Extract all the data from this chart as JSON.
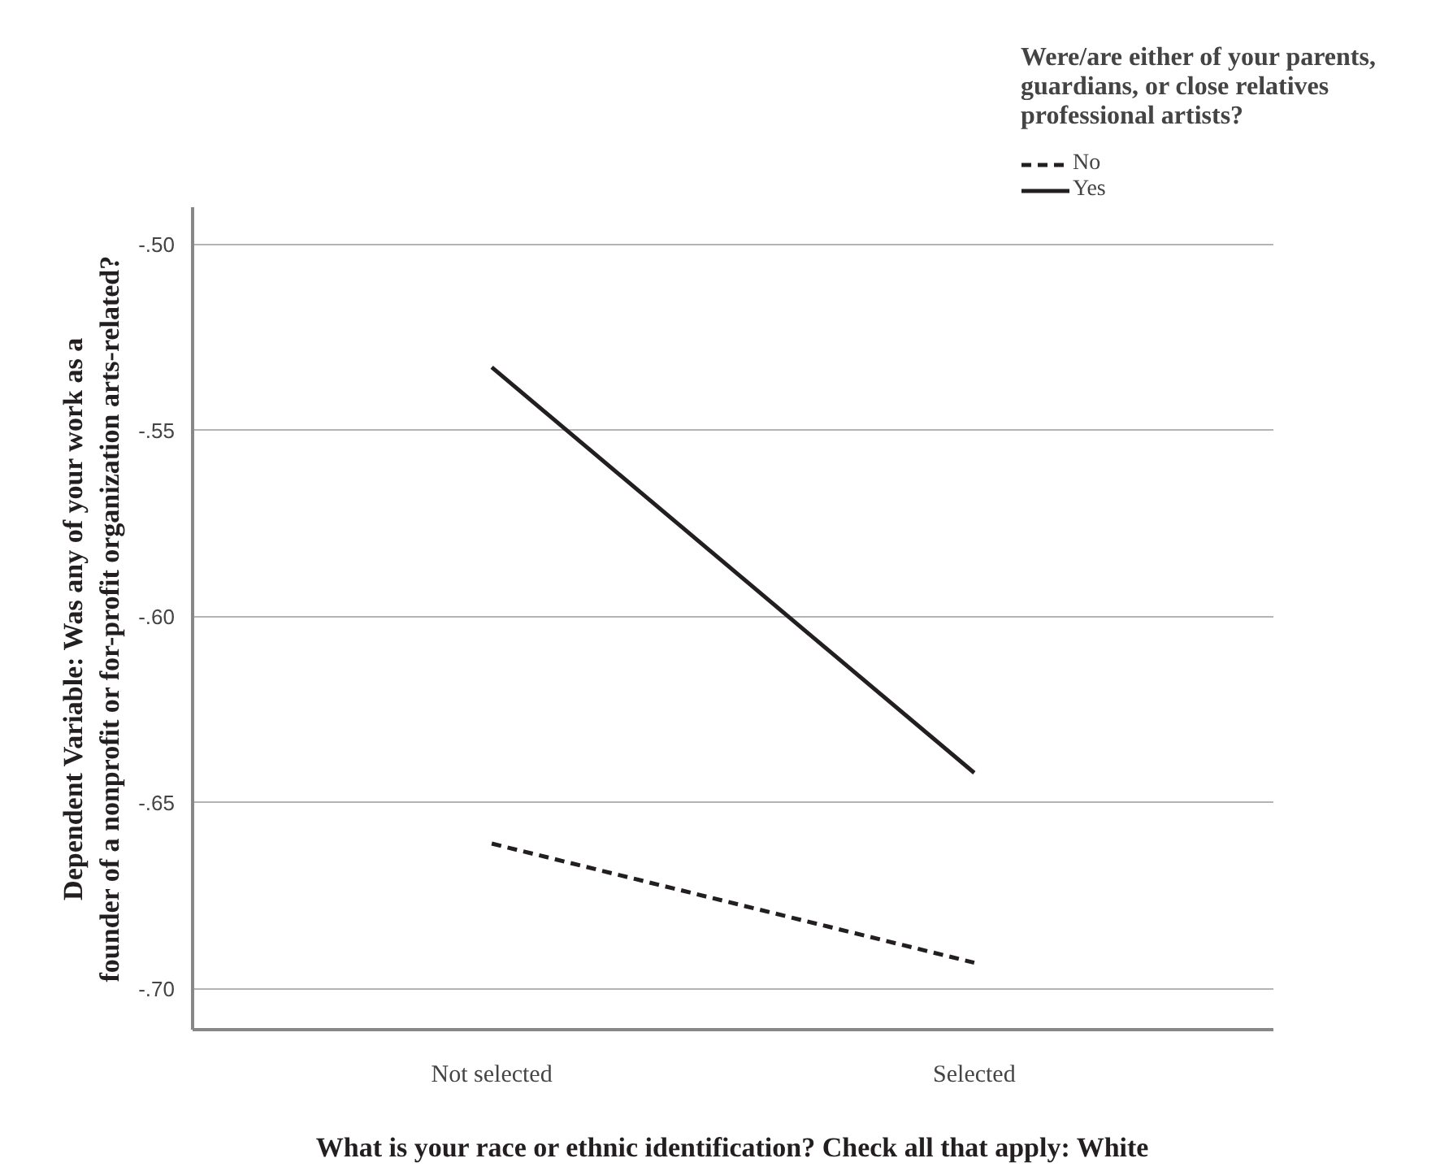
{
  "chart_data": {
    "type": "line",
    "legend_title": "Were/are either of your parents, guardians, or close relatives professional artists?",
    "xlabel": "What is your race or ethnic identification? Check all that apply: White",
    "ylabel": "Dependent Variable: Was any of your work as a founder of a nonprofit or for-profit organization arts-related?",
    "categories": [
      "Not selected",
      "Selected"
    ],
    "series": [
      {
        "name": "No",
        "color": "#231f20",
        "values": [
          -0.661,
          -0.693
        ],
        "line_style": "dashed"
      },
      {
        "name": "Yes",
        "color": "#231f20",
        "values": [
          -0.533,
          -0.642
        ],
        "line_style": "solid"
      }
    ],
    "ylim": [
      -0.711,
      -0.49
    ],
    "yticks": [
      {
        "value": -0.5,
        "label": "-.50"
      },
      {
        "value": -0.55,
        "label": "-.55"
      },
      {
        "value": -0.6,
        "label": "-.60"
      },
      {
        "value": -0.65,
        "label": "-.65"
      },
      {
        "value": -0.7,
        "label": "-.70"
      }
    ],
    "grid": "y",
    "legend": "top right"
  }
}
